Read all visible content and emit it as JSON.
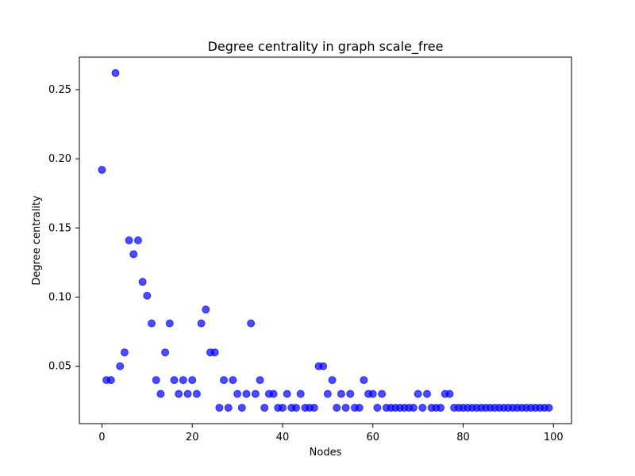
{
  "chart_data": {
    "type": "scatter",
    "title": "Degree centrality in graph scale_free",
    "xlabel": "Nodes",
    "ylabel": "Degree centrality",
    "x_ticks": [
      0,
      20,
      40,
      60,
      80,
      100
    ],
    "y_ticks": [
      0.05,
      0.1,
      0.15,
      0.2,
      0.25
    ],
    "xlim": [
      -5,
      104
    ],
    "ylim": [
      0.0085,
      0.2735
    ],
    "grid": false,
    "point_color": "#0000ff",
    "series": [
      {
        "x": [
          0,
          1,
          2,
          3,
          4,
          5,
          6,
          7,
          8,
          9,
          10,
          11,
          12,
          13,
          14,
          15,
          16,
          17,
          18,
          19,
          20,
          21,
          22,
          23,
          24,
          25,
          26,
          27,
          28,
          29,
          30,
          31,
          32,
          33,
          34,
          35,
          36,
          37,
          38,
          39,
          40,
          41,
          42,
          43,
          44,
          45,
          46,
          47,
          48,
          49,
          50,
          51,
          52,
          53,
          54,
          55,
          56,
          57,
          58,
          59,
          60,
          61,
          62,
          63,
          64,
          65,
          66,
          67,
          68,
          69,
          70,
          71,
          72,
          73,
          74,
          75,
          76,
          77,
          78,
          79,
          80,
          81,
          82,
          83,
          84,
          85,
          86,
          87,
          88,
          89,
          90,
          91,
          92,
          93,
          94,
          95,
          96,
          97,
          98,
          99
        ],
        "y": [
          0.192,
          0.04,
          0.04,
          0.262,
          0.05,
          0.06,
          0.141,
          0.131,
          0.141,
          0.111,
          0.101,
          0.081,
          0.04,
          0.03,
          0.06,
          0.081,
          0.04,
          0.03,
          0.04,
          0.03,
          0.04,
          0.03,
          0.081,
          0.091,
          0.06,
          0.06,
          0.02,
          0.04,
          0.02,
          0.04,
          0.03,
          0.02,
          0.03,
          0.081,
          0.03,
          0.04,
          0.02,
          0.03,
          0.03,
          0.02,
          0.02,
          0.03,
          0.02,
          0.02,
          0.03,
          0.02,
          0.02,
          0.02,
          0.05,
          0.05,
          0.03,
          0.04,
          0.02,
          0.03,
          0.02,
          0.03,
          0.02,
          0.02,
          0.04,
          0.03,
          0.03,
          0.02,
          0.03,
          0.02,
          0.02,
          0.02,
          0.02,
          0.02,
          0.02,
          0.02,
          0.03,
          0.02,
          0.03,
          0.02,
          0.02,
          0.02,
          0.03,
          0.03,
          0.02,
          0.02,
          0.02,
          0.02,
          0.02,
          0.02,
          0.02,
          0.02,
          0.02,
          0.02,
          0.02,
          0.02,
          0.02,
          0.02,
          0.02,
          0.02,
          0.02,
          0.02,
          0.02,
          0.02,
          0.02,
          0.02
        ]
      }
    ]
  }
}
